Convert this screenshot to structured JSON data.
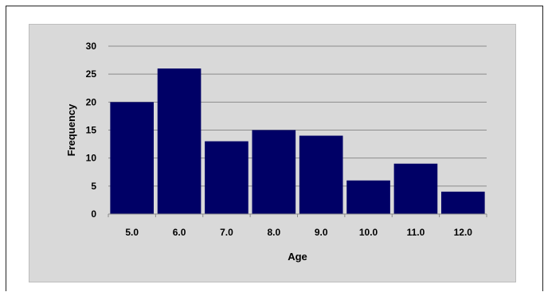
{
  "chart_data": {
    "type": "bar",
    "categories": [
      "5.0",
      "6.0",
      "7.0",
      "8.0",
      "9.0",
      "10.0",
      "11.0",
      "12.0"
    ],
    "values": [
      20,
      26,
      13,
      15,
      14,
      6,
      9,
      4
    ],
    "xlabel": "Age",
    "ylabel": "Frequency",
    "ylim": [
      0,
      30
    ],
    "yticks": [
      "0",
      "5",
      "10",
      "15",
      "20",
      "25",
      "30"
    ],
    "grid": true,
    "bar_color": "#000066",
    "background_color": "#d9d9d9"
  }
}
